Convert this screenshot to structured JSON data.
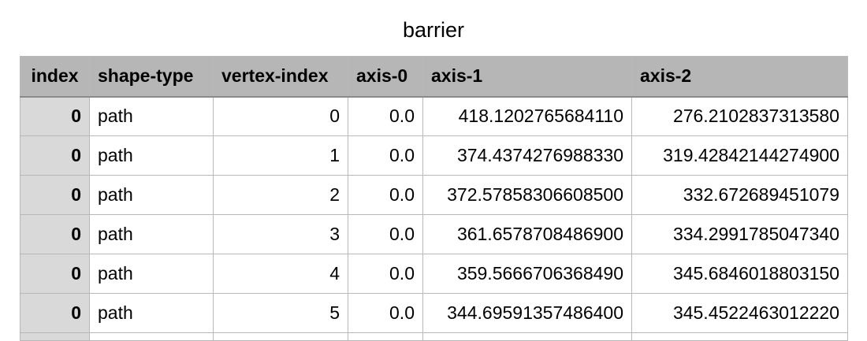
{
  "title": "barrier",
  "columns": [
    "index",
    "shape-type",
    "vertex-index",
    "axis-0",
    "axis-1",
    "axis-2"
  ],
  "rows": [
    {
      "index": "0",
      "shape_type": "path",
      "vertex_index": "0",
      "axis_0": "0.0",
      "axis_1": "418.1202765684110",
      "axis_2": "276.2102837313580"
    },
    {
      "index": "0",
      "shape_type": "path",
      "vertex_index": "1",
      "axis_0": "0.0",
      "axis_1": "374.4374276988330",
      "axis_2": "319.42842144274900"
    },
    {
      "index": "0",
      "shape_type": "path",
      "vertex_index": "2",
      "axis_0": "0.0",
      "axis_1": "372.57858306608500",
      "axis_2": "332.672689451079"
    },
    {
      "index": "0",
      "shape_type": "path",
      "vertex_index": "3",
      "axis_0": "0.0",
      "axis_1": "361.6578708486900",
      "axis_2": "334.2991785047340"
    },
    {
      "index": "0",
      "shape_type": "path",
      "vertex_index": "4",
      "axis_0": "0.0",
      "axis_1": "359.5666706368490",
      "axis_2": "345.6846018803150"
    },
    {
      "index": "0",
      "shape_type": "path",
      "vertex_index": "5",
      "axis_0": "0.0",
      "axis_1": "344.69591357486400",
      "axis_2": "345.4522463012220"
    }
  ]
}
